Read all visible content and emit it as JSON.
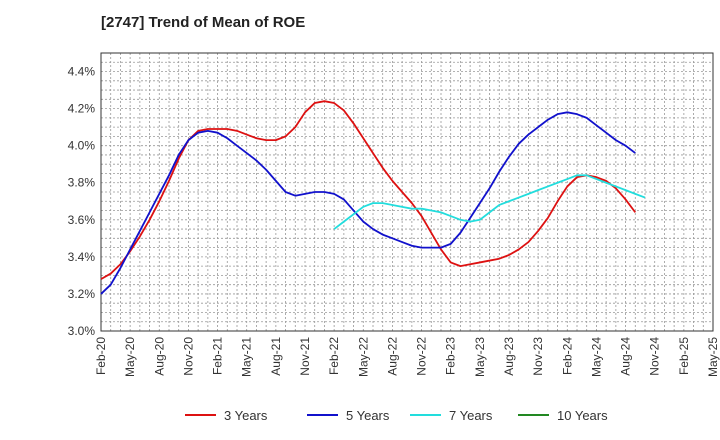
{
  "chart_data": {
    "type": "line",
    "title": "[2747]  Trend of Mean of ROE",
    "xlabel": "",
    "ylabel": "",
    "ylim": [
      3.0,
      4.5
    ],
    "yticks": [
      "3.0%",
      "3.2%",
      "3.4%",
      "3.6%",
      "3.8%",
      "4.0%",
      "4.2%",
      "4.4%"
    ],
    "xticks": [
      "Feb-20",
      "May-20",
      "Aug-20",
      "Nov-20",
      "Feb-21",
      "May-21",
      "Aug-21",
      "Nov-21",
      "Feb-22",
      "May-22",
      "Aug-22",
      "Nov-22",
      "Feb-23",
      "May-23",
      "Aug-23",
      "Nov-23",
      "Feb-24",
      "May-24",
      "Aug-24",
      "Nov-24",
      "Feb-25",
      "May-25"
    ],
    "grid": true,
    "legend_position": "bottom",
    "series": [
      {
        "name": "3 Years",
        "color": "#dd1111",
        "points": [
          [
            0,
            3.28
          ],
          [
            1,
            3.31
          ],
          [
            2,
            3.36
          ],
          [
            3,
            3.43
          ],
          [
            4,
            3.51
          ],
          [
            5,
            3.6
          ],
          [
            6,
            3.7
          ],
          [
            7,
            3.81
          ],
          [
            8,
            3.93
          ],
          [
            9,
            4.03
          ],
          [
            10,
            4.08
          ],
          [
            11,
            4.09
          ],
          [
            12,
            4.09
          ],
          [
            13,
            4.09
          ],
          [
            14,
            4.08
          ],
          [
            15,
            4.06
          ],
          [
            16,
            4.04
          ],
          [
            17,
            4.03
          ],
          [
            18,
            4.03
          ],
          [
            19,
            4.05
          ],
          [
            20,
            4.1
          ],
          [
            21,
            4.18
          ],
          [
            22,
            4.23
          ],
          [
            23,
            4.24
          ],
          [
            24,
            4.23
          ],
          [
            25,
            4.19
          ],
          [
            26,
            4.12
          ],
          [
            27,
            4.04
          ],
          [
            28,
            3.96
          ],
          [
            29,
            3.88
          ],
          [
            30,
            3.81
          ],
          [
            31,
            3.75
          ],
          [
            32,
            3.69
          ],
          [
            33,
            3.62
          ],
          [
            34,
            3.53
          ],
          [
            35,
            3.44
          ],
          [
            36,
            3.37
          ],
          [
            37,
            3.35
          ],
          [
            38,
            3.36
          ],
          [
            39,
            3.37
          ],
          [
            40,
            3.38
          ],
          [
            41,
            3.39
          ],
          [
            42,
            3.41
          ],
          [
            43,
            3.44
          ],
          [
            44,
            3.48
          ],
          [
            45,
            3.54
          ],
          [
            46,
            3.61
          ],
          [
            47,
            3.7
          ],
          [
            48,
            3.78
          ],
          [
            49,
            3.83
          ],
          [
            50,
            3.84
          ],
          [
            51,
            3.83
          ],
          [
            52,
            3.81
          ],
          [
            53,
            3.77
          ],
          [
            54,
            3.71
          ],
          [
            55,
            3.64
          ]
        ]
      },
      {
        "name": "5 Years",
        "color": "#1111cc",
        "points": [
          [
            0,
            3.2
          ],
          [
            1,
            3.25
          ],
          [
            2,
            3.34
          ],
          [
            3,
            3.44
          ],
          [
            4,
            3.54
          ],
          [
            5,
            3.64
          ],
          [
            6,
            3.74
          ],
          [
            7,
            3.84
          ],
          [
            8,
            3.95
          ],
          [
            9,
            4.03
          ],
          [
            10,
            4.07
          ],
          [
            11,
            4.08
          ],
          [
            12,
            4.07
          ],
          [
            13,
            4.04
          ],
          [
            14,
            4.0
          ],
          [
            15,
            3.96
          ],
          [
            16,
            3.92
          ],
          [
            17,
            3.87
          ],
          [
            18,
            3.81
          ],
          [
            19,
            3.75
          ],
          [
            20,
            3.73
          ],
          [
            21,
            3.74
          ],
          [
            22,
            3.75
          ],
          [
            23,
            3.75
          ],
          [
            24,
            3.74
          ],
          [
            25,
            3.71
          ],
          [
            26,
            3.65
          ],
          [
            27,
            3.59
          ],
          [
            28,
            3.55
          ],
          [
            29,
            3.52
          ],
          [
            30,
            3.5
          ],
          [
            31,
            3.48
          ],
          [
            32,
            3.46
          ],
          [
            33,
            3.45
          ],
          [
            34,
            3.45
          ],
          [
            35,
            3.45
          ],
          [
            36,
            3.47
          ],
          [
            37,
            3.53
          ],
          [
            38,
            3.61
          ],
          [
            39,
            3.69
          ],
          [
            40,
            3.77
          ],
          [
            41,
            3.86
          ],
          [
            42,
            3.94
          ],
          [
            43,
            4.01
          ],
          [
            44,
            4.06
          ],
          [
            45,
            4.1
          ],
          [
            46,
            4.14
          ],
          [
            47,
            4.17
          ],
          [
            48,
            4.18
          ],
          [
            49,
            4.17
          ],
          [
            50,
            4.15
          ],
          [
            51,
            4.11
          ],
          [
            52,
            4.07
          ],
          [
            53,
            4.03
          ],
          [
            54,
            4.0
          ],
          [
            55,
            3.96
          ]
        ]
      },
      {
        "name": "7 Years",
        "color": "#22dddd",
        "points": [
          [
            24,
            3.55
          ],
          [
            25,
            3.59
          ],
          [
            26,
            3.63
          ],
          [
            27,
            3.67
          ],
          [
            28,
            3.69
          ],
          [
            29,
            3.69
          ],
          [
            30,
            3.68
          ],
          [
            31,
            3.67
          ],
          [
            32,
            3.66
          ],
          [
            33,
            3.66
          ],
          [
            34,
            3.65
          ],
          [
            35,
            3.64
          ],
          [
            36,
            3.62
          ],
          [
            37,
            3.6
          ],
          [
            38,
            3.59
          ],
          [
            39,
            3.6
          ],
          [
            40,
            3.64
          ],
          [
            41,
            3.68
          ],
          [
            42,
            3.7
          ],
          [
            43,
            3.72
          ],
          [
            44,
            3.74
          ],
          [
            45,
            3.76
          ],
          [
            46,
            3.78
          ],
          [
            47,
            3.8
          ],
          [
            48,
            3.82
          ],
          [
            49,
            3.84
          ],
          [
            50,
            3.84
          ],
          [
            51,
            3.82
          ],
          [
            52,
            3.8
          ],
          [
            53,
            3.78
          ],
          [
            54,
            3.76
          ],
          [
            55,
            3.74
          ],
          [
            56,
            3.72
          ]
        ]
      },
      {
        "name": "10 Years",
        "color": "#228822",
        "points": []
      }
    ]
  }
}
